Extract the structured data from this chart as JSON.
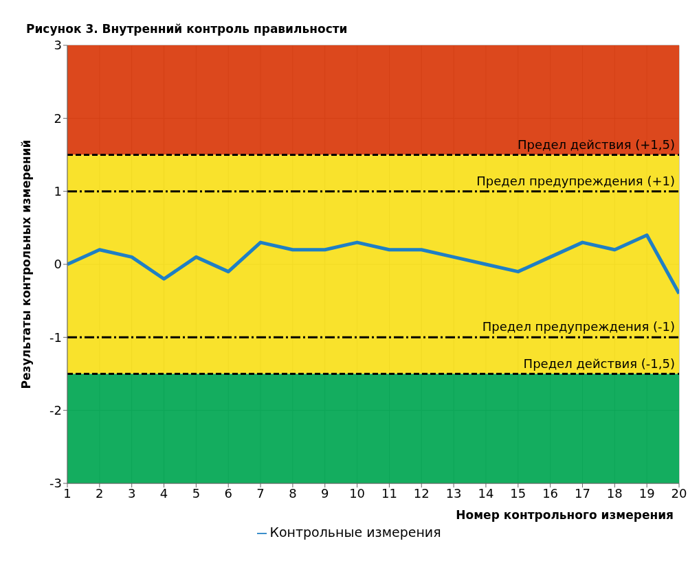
{
  "chart_data": {
    "type": "line",
    "title": "Рисунок 3. Внутренний контроль правильности",
    "xlabel": "Номер контрольного измерения",
    "ylabel": "Результаты контрольных измерений",
    "x": [
      1,
      2,
      3,
      4,
      5,
      6,
      7,
      8,
      9,
      10,
      11,
      12,
      13,
      14,
      15,
      16,
      17,
      18,
      19,
      20
    ],
    "series": [
      {
        "name": "Контрольные измерения",
        "color": "#1f7fc4",
        "values": [
          0,
          0.2,
          0.1,
          -0.2,
          0.1,
          -0.1,
          0.3,
          0.2,
          0.2,
          0.3,
          0.2,
          0.2,
          0.1,
          0,
          -0.1,
          0.1,
          0.3,
          0.2,
          0.4,
          -0.4
        ]
      }
    ],
    "xlim": [
      1,
      20
    ],
    "xticks": [
      1,
      2,
      3,
      4,
      5,
      6,
      7,
      8,
      9,
      10,
      11,
      12,
      13,
      14,
      15,
      16,
      17,
      18,
      19,
      20
    ],
    "ylim": [
      -3,
      3
    ],
    "yticks": [
      -3,
      -2,
      -1,
      0,
      1,
      2,
      3
    ],
    "bands": [
      {
        "axis": "y",
        "from": 1.5,
        "to": 3,
        "color": "#d9380a"
      },
      {
        "axis": "y",
        "from": -1.5,
        "to": 1.5,
        "color": "#f8e01a"
      },
      {
        "axis": "y",
        "from": -3,
        "to": -1.5,
        "color": "#00a651"
      }
    ],
    "ref_lines": [
      {
        "axis": "y",
        "value": 1.5,
        "label": "Предел действия (+1,5)",
        "line_style": "dashed",
        "color": "#000000"
      },
      {
        "axis": "y",
        "value": 1,
        "label": "Предел предупреждения (+1)",
        "line_style": "dashdot",
        "color": "#000000"
      },
      {
        "axis": "y",
        "value": -1,
        "label": "Предел предупреждения (-1)",
        "line_style": "dashdot",
        "color": "#000000"
      },
      {
        "axis": "y",
        "value": -1.5,
        "label": "Предел действия (-1,5)",
        "line_style": "dashed",
        "color": "#000000"
      }
    ],
    "grid": true,
    "legend": "bottom",
    "marker": "none",
    "line_style": "solid"
  }
}
